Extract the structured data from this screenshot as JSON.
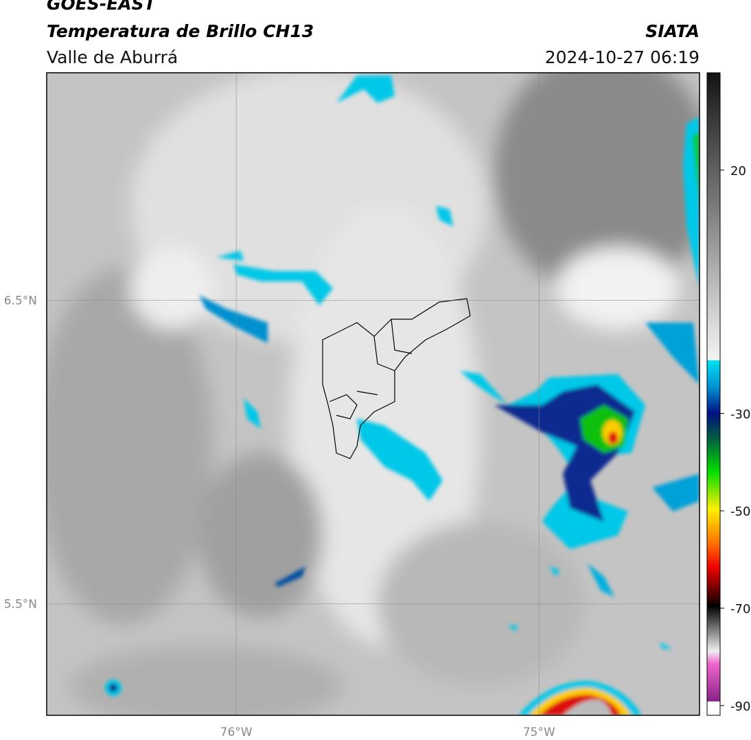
{
  "header": {
    "title": "GOES-EAST",
    "subtitle": "Temperatura de Brillo CH13",
    "region": "Valle de Aburrá",
    "source": "SIATA",
    "datetime": "2024-10-27 06:19"
  },
  "map": {
    "xlim": [
      -76.626,
      -74.47
    ],
    "ylim": [
      5.133,
      7.25
    ],
    "xticks": [
      {
        "value": -76,
        "label": "76°W"
      },
      {
        "value": -75,
        "label": "75°W"
      }
    ],
    "yticks": [
      {
        "value": 6.5,
        "label": "6.5°N"
      },
      {
        "value": 5.5,
        "label": "5.5°N"
      }
    ],
    "grid": true
  },
  "colorbar": {
    "lim": [
      -92,
      40
    ],
    "ticks": [
      20,
      -30,
      -50,
      -70,
      -90
    ]
  }
}
